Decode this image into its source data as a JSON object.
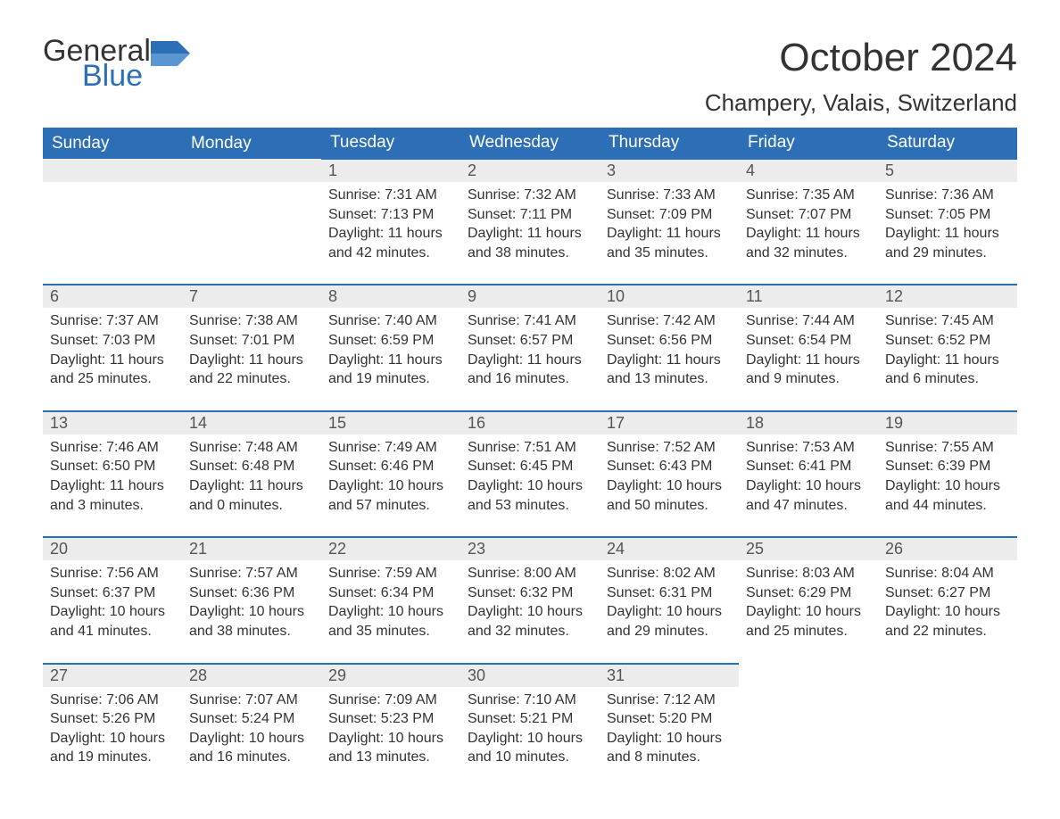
{
  "logo": {
    "text_general": "General",
    "text_blue": "Blue"
  },
  "title": "October 2024",
  "location": "Champery, Valais, Switzerland",
  "colors": {
    "header_bg": "#2d6fb6",
    "header_text": "#ffffff",
    "daynum_bg": "#ececec",
    "body_text": "#333333",
    "accent": "#2d6fb6"
  },
  "weekdays": [
    "Sunday",
    "Monday",
    "Tuesday",
    "Wednesday",
    "Thursday",
    "Friday",
    "Saturday"
  ],
  "weeks": [
    [
      null,
      null,
      {
        "n": "1",
        "sunrise": "7:31 AM",
        "sunset": "7:13 PM",
        "daylight": "11 hours and 42 minutes."
      },
      {
        "n": "2",
        "sunrise": "7:32 AM",
        "sunset": "7:11 PM",
        "daylight": "11 hours and 38 minutes."
      },
      {
        "n": "3",
        "sunrise": "7:33 AM",
        "sunset": "7:09 PM",
        "daylight": "11 hours and 35 minutes."
      },
      {
        "n": "4",
        "sunrise": "7:35 AM",
        "sunset": "7:07 PM",
        "daylight": "11 hours and 32 minutes."
      },
      {
        "n": "5",
        "sunrise": "7:36 AM",
        "sunset": "7:05 PM",
        "daylight": "11 hours and 29 minutes."
      }
    ],
    [
      {
        "n": "6",
        "sunrise": "7:37 AM",
        "sunset": "7:03 PM",
        "daylight": "11 hours and 25 minutes."
      },
      {
        "n": "7",
        "sunrise": "7:38 AM",
        "sunset": "7:01 PM",
        "daylight": "11 hours and 22 minutes."
      },
      {
        "n": "8",
        "sunrise": "7:40 AM",
        "sunset": "6:59 PM",
        "daylight": "11 hours and 19 minutes."
      },
      {
        "n": "9",
        "sunrise": "7:41 AM",
        "sunset": "6:57 PM",
        "daylight": "11 hours and 16 minutes."
      },
      {
        "n": "10",
        "sunrise": "7:42 AM",
        "sunset": "6:56 PM",
        "daylight": "11 hours and 13 minutes."
      },
      {
        "n": "11",
        "sunrise": "7:44 AM",
        "sunset": "6:54 PM",
        "daylight": "11 hours and 9 minutes."
      },
      {
        "n": "12",
        "sunrise": "7:45 AM",
        "sunset": "6:52 PM",
        "daylight": "11 hours and 6 minutes."
      }
    ],
    [
      {
        "n": "13",
        "sunrise": "7:46 AM",
        "sunset": "6:50 PM",
        "daylight": "11 hours and 3 minutes."
      },
      {
        "n": "14",
        "sunrise": "7:48 AM",
        "sunset": "6:48 PM",
        "daylight": "11 hours and 0 minutes."
      },
      {
        "n": "15",
        "sunrise": "7:49 AM",
        "sunset": "6:46 PM",
        "daylight": "10 hours and 57 minutes."
      },
      {
        "n": "16",
        "sunrise": "7:51 AM",
        "sunset": "6:45 PM",
        "daylight": "10 hours and 53 minutes."
      },
      {
        "n": "17",
        "sunrise": "7:52 AM",
        "sunset": "6:43 PM",
        "daylight": "10 hours and 50 minutes."
      },
      {
        "n": "18",
        "sunrise": "7:53 AM",
        "sunset": "6:41 PM",
        "daylight": "10 hours and 47 minutes."
      },
      {
        "n": "19",
        "sunrise": "7:55 AM",
        "sunset": "6:39 PM",
        "daylight": "10 hours and 44 minutes."
      }
    ],
    [
      {
        "n": "20",
        "sunrise": "7:56 AM",
        "sunset": "6:37 PM",
        "daylight": "10 hours and 41 minutes."
      },
      {
        "n": "21",
        "sunrise": "7:57 AM",
        "sunset": "6:36 PM",
        "daylight": "10 hours and 38 minutes."
      },
      {
        "n": "22",
        "sunrise": "7:59 AM",
        "sunset": "6:34 PM",
        "daylight": "10 hours and 35 minutes."
      },
      {
        "n": "23",
        "sunrise": "8:00 AM",
        "sunset": "6:32 PM",
        "daylight": "10 hours and 32 minutes."
      },
      {
        "n": "24",
        "sunrise": "8:02 AM",
        "sunset": "6:31 PM",
        "daylight": "10 hours and 29 minutes."
      },
      {
        "n": "25",
        "sunrise": "8:03 AM",
        "sunset": "6:29 PM",
        "daylight": "10 hours and 25 minutes."
      },
      {
        "n": "26",
        "sunrise": "8:04 AM",
        "sunset": "6:27 PM",
        "daylight": "10 hours and 22 minutes."
      }
    ],
    [
      {
        "n": "27",
        "sunrise": "7:06 AM",
        "sunset": "5:26 PM",
        "daylight": "10 hours and 19 minutes."
      },
      {
        "n": "28",
        "sunrise": "7:07 AM",
        "sunset": "5:24 PM",
        "daylight": "10 hours and 16 minutes."
      },
      {
        "n": "29",
        "sunrise": "7:09 AM",
        "sunset": "5:23 PM",
        "daylight": "10 hours and 13 minutes."
      },
      {
        "n": "30",
        "sunrise": "7:10 AM",
        "sunset": "5:21 PM",
        "daylight": "10 hours and 10 minutes."
      },
      {
        "n": "31",
        "sunrise": "7:12 AM",
        "sunset": "5:20 PM",
        "daylight": "10 hours and 8 minutes."
      },
      null,
      null
    ]
  ],
  "labels": {
    "sunrise": "Sunrise: ",
    "sunset": "Sunset: ",
    "daylight": "Daylight: "
  }
}
